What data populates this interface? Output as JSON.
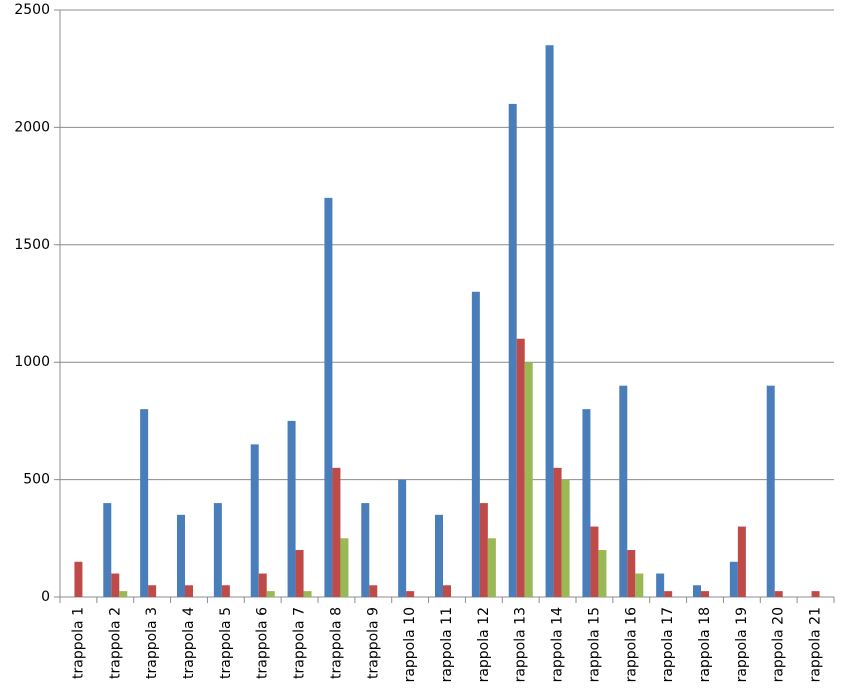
{
  "chart_data": {
    "type": "bar",
    "categories": [
      "trappola 1",
      "trappola 2",
      "trappola 3",
      "trappola 4",
      "trappola 5",
      "trappola 6",
      "trappola 7",
      "trappola 8",
      "trappola 9",
      "rappola 10",
      "rappola 11",
      "rappola 12",
      "rappola 13",
      "rappola 14",
      "rappola 15",
      "rappola 16",
      "rappola 17",
      "rappola 18",
      "rappola 19",
      "rappola 20",
      "rappola 21"
    ],
    "series": [
      {
        "color": "#4a7ebb",
        "values": [
          0,
          400,
          800,
          350,
          400,
          650,
          750,
          1700,
          400,
          500,
          350,
          1300,
          2100,
          2350,
          800,
          900,
          100,
          50,
          150,
          900,
          0
        ]
      },
      {
        "color": "#be4b48",
        "values": [
          150,
          100,
          50,
          50,
          50,
          100,
          200,
          550,
          50,
          25,
          50,
          400,
          1100,
          550,
          300,
          200,
          25,
          25,
          300,
          25,
          25
        ]
      },
      {
        "color": "#98b954",
        "values": [
          0,
          25,
          0,
          0,
          0,
          25,
          25,
          250,
          0,
          0,
          0,
          250,
          1000,
          500,
          200,
          100,
          0,
          0,
          0,
          0,
          0
        ]
      }
    ],
    "ylim": [
      0,
      2500
    ],
    "yticks": [
      0,
      500,
      1000,
      1500,
      2000,
      2500
    ],
    "grid": true
  }
}
